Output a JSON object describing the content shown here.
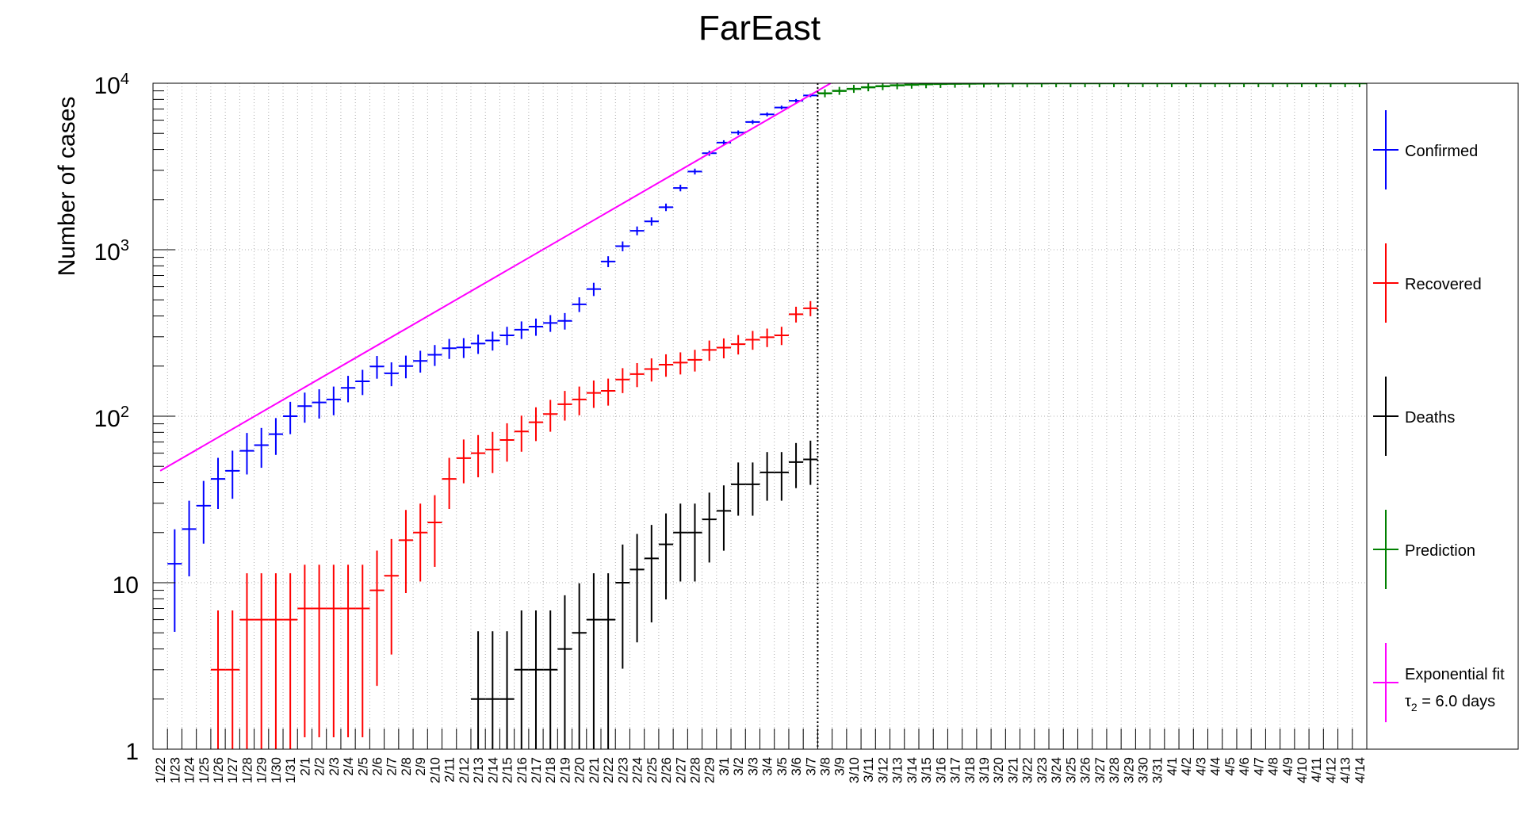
{
  "chart_data": {
    "type": "scatter",
    "title": "FarEast",
    "ylabel": "Number of cases",
    "xlabel": "",
    "yscale": "log",
    "ylim": [
      1,
      10000
    ],
    "y_tick_labels": [
      {
        "value": 1,
        "base": "1",
        "exp": ""
      },
      {
        "value": 10,
        "base": "10",
        "exp": ""
      },
      {
        "value": 100,
        "base": "10",
        "exp": "2"
      },
      {
        "value": 1000,
        "base": "10",
        "exp": "3"
      },
      {
        "value": 10000,
        "base": "10",
        "exp": "4"
      }
    ],
    "grid": true,
    "legend_position": "right",
    "reference_line_date": "3/7",
    "dates": [
      "1/22",
      "1/23",
      "1/24",
      "1/25",
      "1/26",
      "1/27",
      "1/28",
      "1/29",
      "1/30",
      "1/31",
      "2/1",
      "2/2",
      "2/3",
      "2/4",
      "2/5",
      "2/6",
      "2/7",
      "2/8",
      "2/9",
      "2/10",
      "2/11",
      "2/12",
      "2/13",
      "2/14",
      "2/15",
      "2/16",
      "2/17",
      "2/18",
      "2/19",
      "2/20",
      "2/21",
      "2/22",
      "2/23",
      "2/24",
      "2/25",
      "2/26",
      "2/27",
      "2/28",
      "2/29",
      "3/1",
      "3/2",
      "3/3",
      "3/4",
      "3/5",
      "3/6",
      "3/7",
      "3/8",
      "3/9",
      "3/10",
      "3/11",
      "3/12",
      "3/13",
      "3/14",
      "3/15",
      "3/16",
      "3/17",
      "3/18",
      "3/19",
      "3/20",
      "3/21",
      "3/22",
      "3/23",
      "3/24",
      "3/25",
      "3/26",
      "3/27",
      "3/28",
      "3/29",
      "3/30",
      "3/31",
      "4/1",
      "4/2",
      "4/3",
      "4/4",
      "4/5",
      "4/6",
      "4/7",
      "4/8",
      "4/9",
      "4/10",
      "4/11",
      "4/12",
      "4/13",
      "4/14"
    ],
    "series": [
      {
        "name": "Confirmed",
        "color": "#0000ff",
        "values": [
          null,
          13,
          21,
          29,
          42,
          47,
          62,
          67,
          78,
          100,
          115,
          121,
          126,
          148,
          162,
          199,
          181,
          200,
          215,
          234,
          256,
          259,
          273,
          285,
          306,
          331,
          345,
          363,
          374,
          470,
          580,
          850,
          1050,
          1300,
          1480,
          1800,
          2350,
          2950,
          3800,
          4400,
          5050,
          5850,
          6500,
          7150,
          7850,
          8450
        ]
      },
      {
        "name": "Recovered",
        "color": "#ff0000",
        "values": [
          null,
          null,
          null,
          null,
          3,
          3,
          6,
          6,
          6,
          6,
          7,
          7,
          7,
          7,
          7,
          9,
          11,
          18,
          20,
          23,
          42,
          56,
          60,
          63,
          72,
          81,
          92,
          103,
          118,
          126,
          138,
          142,
          166,
          179,
          192,
          204,
          210,
          218,
          250,
          258,
          271,
          288,
          298,
          306,
          410,
          445
        ]
      },
      {
        "name": "Deaths",
        "color": "#000000",
        "values": [
          null,
          null,
          null,
          null,
          null,
          null,
          null,
          null,
          null,
          null,
          null,
          null,
          null,
          null,
          null,
          null,
          null,
          null,
          null,
          null,
          null,
          null,
          2,
          2,
          2,
          3,
          3,
          3,
          4,
          5,
          6,
          6,
          10,
          12,
          14,
          17,
          20,
          20,
          24,
          27,
          39,
          39,
          46,
          46,
          53,
          55
        ]
      },
      {
        "name": "Prediction",
        "color": "#008000",
        "values": [
          null,
          null,
          null,
          null,
          null,
          null,
          null,
          null,
          null,
          null,
          null,
          null,
          null,
          null,
          null,
          null,
          null,
          null,
          null,
          null,
          null,
          null,
          null,
          null,
          null,
          null,
          null,
          null,
          null,
          null,
          null,
          null,
          null,
          null,
          null,
          null,
          null,
          null,
          null,
          null,
          null,
          null,
          null,
          null,
          null,
          null,
          8700,
          9000,
          9250,
          9450,
          9600,
          9720,
          9800,
          9860,
          9900,
          9930,
          9950,
          9965,
          9975,
          9982,
          9987,
          9991,
          9994,
          9996,
          9997,
          9998,
          9998,
          9999,
          9999,
          9999,
          9999,
          10000,
          10000,
          10000,
          10000,
          10000,
          10000,
          10000,
          10000,
          10000,
          10000,
          10000,
          10000,
          10000
        ]
      },
      {
        "name": "Exponential fit",
        "legend_sub": "τ",
        "legend_sub_index": "2",
        "legend_sub_tail": " = 6.0 days",
        "color": "#ff00ff",
        "fit": {
          "start_date": "1/22",
          "start_value": 47,
          "doubling_days": 6.0,
          "end_value": 10000
        }
      }
    ]
  }
}
